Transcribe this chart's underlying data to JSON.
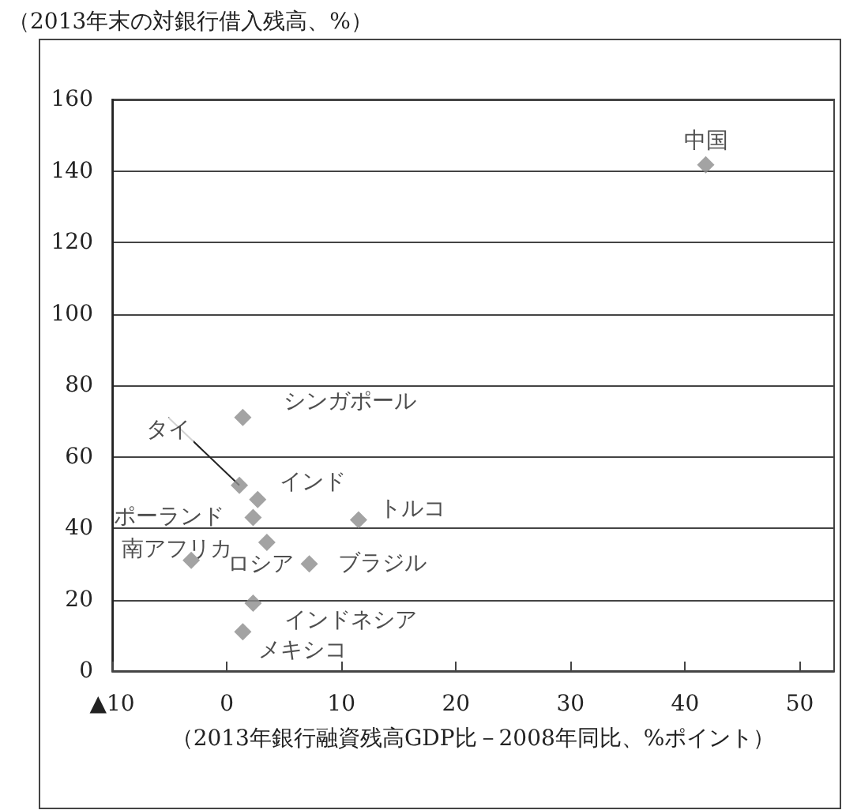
{
  "chart_data": {
    "type": "scatter",
    "title": "（2013年末の対銀行借入残高、%）",
    "xlabel": "（2013年銀行融資残高GDP比－2008年同比、%ポイント）",
    "x": [
      41.8,
      1.4,
      1.1,
      2.7,
      2.3,
      11.5,
      -3.1,
      3.5,
      7.2,
      2.3,
      1.4
    ],
    "values": [
      141.7,
      71,
      52,
      48,
      43,
      42.3,
      31,
      36,
      30,
      19,
      11
    ],
    "color": "#8c8c8c",
    "marker": "diamond",
    "xlim": [
      -10,
      53
    ],
    "xticks": [
      {
        "value": -10,
        "label": "▲10"
      },
      0,
      10,
      20,
      30,
      40,
      50
    ],
    "ylim": [
      0,
      160
    ],
    "yticks": [
      0,
      20,
      40,
      60,
      80,
      100,
      120,
      140,
      160
    ],
    "grid": "y",
    "annotations": [
      {
        "text": "中国",
        "x": 41.8,
        "y": 141.7
      },
      {
        "text": "シンガポール",
        "x": 1.4,
        "y": 71
      },
      {
        "text": "タイ",
        "x": 1.1,
        "y": 52
      },
      {
        "text": "インド",
        "x": 2.7,
        "y": 48
      },
      {
        "text": "ポーランド",
        "x": 2.3,
        "y": 43
      },
      {
        "text": "トルコ",
        "x": 11.5,
        "y": 42.3
      },
      {
        "text": "南アフリカ",
        "x": -3.1,
        "y": 31
      },
      {
        "text": "ロシア",
        "x": 3.5,
        "y": 36
      },
      {
        "text": "ブラジル",
        "x": 7.2,
        "y": 30
      },
      {
        "text": "インドネシア",
        "x": 2.3,
        "y": 19
      },
      {
        "text": "メキシコ",
        "x": 1.4,
        "y": 11
      }
    ]
  }
}
